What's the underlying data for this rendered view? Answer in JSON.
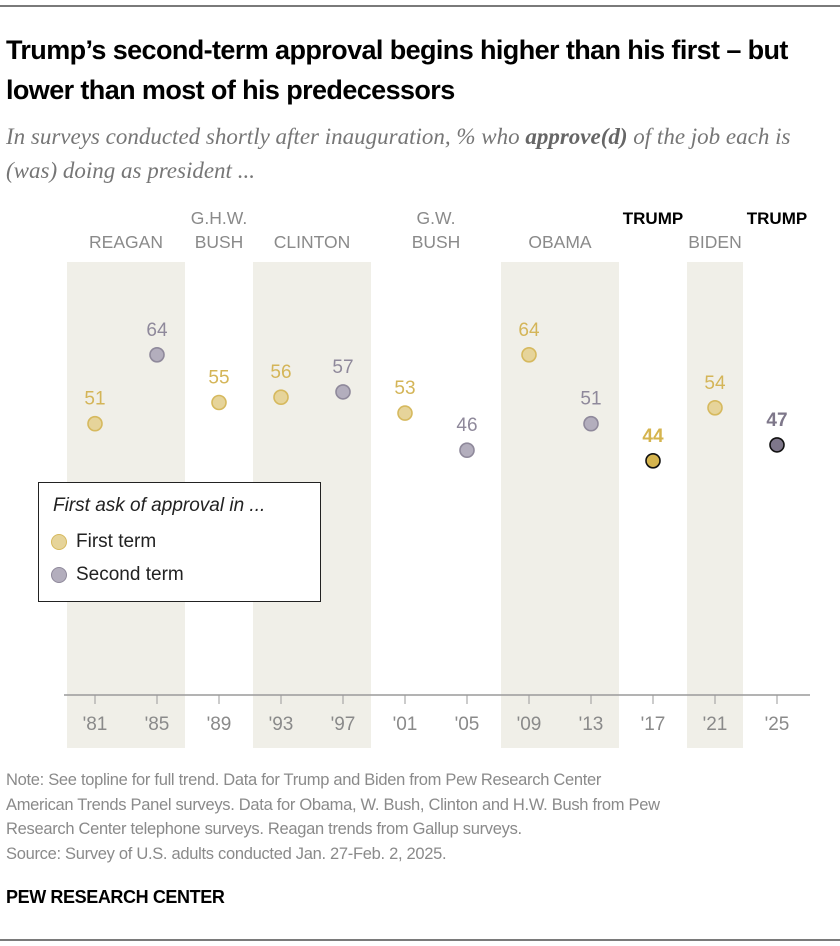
{
  "title": "Trump’s second-term approval begins higher than his first – but lower than most of his predecessors",
  "subtitle": {
    "pre": "In surveys conducted shortly after inauguration, % who ",
    "bold": "approve(d)",
    "post": " of the job each is (was) doing as president ..."
  },
  "legend": {
    "title": "First ask of approval in ...",
    "items": [
      {
        "label": "First term",
        "color": "#e6d49a"
      },
      {
        "label": "Second term",
        "color": "#b3aebd"
      }
    ]
  },
  "colors": {
    "band": "#f0efe8",
    "first_fill": "#e6d49a",
    "first_stroke": "#d6b95e",
    "first_text": "#d4b558",
    "second_fill": "#b3aebd",
    "second_stroke": "#8f899b",
    "second_text": "#8f899b",
    "trump_first_fill": "#d5b44e",
    "trump_second_fill": "#7e778a",
    "axis": "#9a9a9a",
    "president_label": "#8a8a8a",
    "trump_label": "#000000"
  },
  "chart_data": {
    "type": "scatter",
    "title": "Trump’s second-term approval begins higher than his first – but lower than most of his predecessors",
    "ylabel": "% who approve(d)",
    "ylim": [
      0,
      100
    ],
    "grid": false,
    "legend_position": "left",
    "presidents": [
      {
        "name": [
          "REAGAN"
        ],
        "years": [
          "'81",
          "'85"
        ],
        "band": true,
        "highlight": false
      },
      {
        "name": [
          "G.H.W.",
          "BUSH"
        ],
        "years": [
          "'89"
        ],
        "band": false,
        "highlight": false
      },
      {
        "name": [
          "CLINTON"
        ],
        "years": [
          "'93",
          "'97"
        ],
        "band": true,
        "highlight": false
      },
      {
        "name": [
          "G.W.",
          "BUSH"
        ],
        "years": [
          "'01",
          "'05"
        ],
        "band": false,
        "highlight": false
      },
      {
        "name": [
          "OBAMA"
        ],
        "years": [
          "'09",
          "'13"
        ],
        "band": true,
        "highlight": false
      },
      {
        "name": [
          "TRUMP"
        ],
        "years": [
          "'17"
        ],
        "band": false,
        "highlight": true
      },
      {
        "name": [
          "BIDEN"
        ],
        "years": [
          "'21"
        ],
        "band": true,
        "highlight": false
      },
      {
        "name": [
          "TRUMP"
        ],
        "years": [
          "'25"
        ],
        "band": false,
        "highlight": true
      }
    ],
    "points": [
      {
        "x": "'81",
        "value": 51,
        "term": "first",
        "trump": false
      },
      {
        "x": "'85",
        "value": 64,
        "term": "second",
        "trump": false
      },
      {
        "x": "'89",
        "value": 55,
        "term": "first",
        "trump": false
      },
      {
        "x": "'93",
        "value": 56,
        "term": "first",
        "trump": false
      },
      {
        "x": "'97",
        "value": 57,
        "term": "second",
        "trump": false
      },
      {
        "x": "'01",
        "value": 53,
        "term": "first",
        "trump": false
      },
      {
        "x": "'05",
        "value": 46,
        "term": "second",
        "trump": false
      },
      {
        "x": "'09",
        "value": 64,
        "term": "first",
        "trump": false
      },
      {
        "x": "'13",
        "value": 51,
        "term": "second",
        "trump": false
      },
      {
        "x": "'17",
        "value": 44,
        "term": "first",
        "trump": true
      },
      {
        "x": "'21",
        "value": 54,
        "term": "first",
        "trump": false
      },
      {
        "x": "'25",
        "value": 47,
        "term": "second",
        "trump": true
      }
    ]
  },
  "note": [
    "Note: See topline for full trend. Data for Trump and Biden from Pew Research Center",
    "American Trends Panel surveys. Data for Obama, W. Bush, Clinton and H.W. Bush from Pew",
    "Research Center telephone surveys. Reagan trends from Gallup surveys.",
    "Source: Survey of U.S. adults conducted Jan. 27-Feb. 2, 2025."
  ],
  "brand": "PEW RESEARCH CENTER"
}
